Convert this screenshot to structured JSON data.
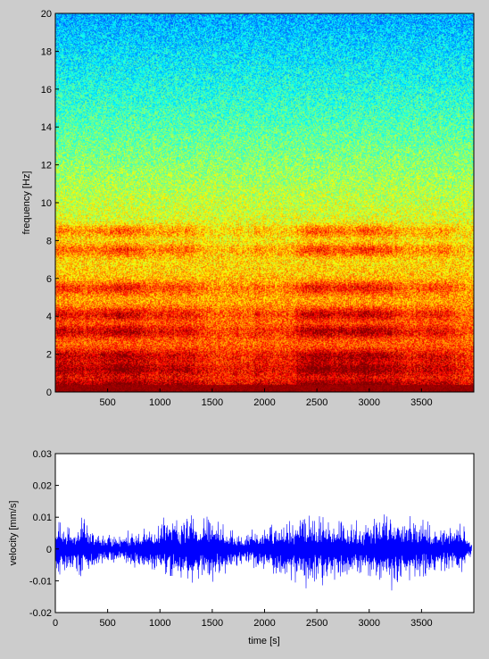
{
  "figure": {
    "background": "#cccccc"
  },
  "chart_data": [
    {
      "type": "heatmap",
      "title": "",
      "xlabel": "",
      "ylabel": "frequency [Hz]",
      "xlim": [
        0,
        4000
      ],
      "ylim": [
        0,
        20
      ],
      "x_ticks": [
        500,
        1000,
        1500,
        2000,
        2500,
        3000,
        3500
      ],
      "y_ticks": [
        0,
        2,
        4,
        6,
        8,
        10,
        12,
        14,
        16,
        18,
        20
      ],
      "colormap": "jet",
      "bands_hz": [
        {
          "freq": 0.3,
          "level": 0.95
        },
        {
          "freq": 1.2,
          "level": 0.85
        },
        {
          "freq": 1.9,
          "level": 0.75
        },
        {
          "freq": 3.2,
          "level": 0.9
        },
        {
          "freq": 4.1,
          "level": 0.85
        },
        {
          "freq": 5.5,
          "level": 0.75
        },
        {
          "freq": 7.5,
          "level": 0.8
        },
        {
          "freq": 8.5,
          "level": 0.75
        }
      ]
    },
    {
      "type": "line",
      "title": "",
      "xlabel": "time [s]",
      "ylabel": "velocity [mm/s]",
      "xlim": [
        0,
        4000
      ],
      "ylim": [
        -0.02,
        0.03
      ],
      "x_ticks": [
        0,
        500,
        1000,
        1500,
        2000,
        2500,
        3000,
        3500
      ],
      "y_ticks": [
        -0.02,
        -0.01,
        0,
        0.01,
        0.02,
        0.03
      ],
      "y_tick_labels": [
        "-0.02",
        "-0.01",
        "0",
        "0.01",
        "0.02",
        "0.03"
      ],
      "line_color": "#0000ff",
      "amplitude_envelope": {
        "t": [
          0,
          50,
          200,
          250,
          300,
          500,
          700,
          900,
          1100,
          1300,
          1500,
          1700,
          1800,
          2000,
          2200,
          2400,
          2600,
          2800,
          3000,
          3200,
          3300,
          3500,
          3700,
          3900,
          3980
        ],
        "amp": [
          0.013,
          0.009,
          0.007,
          0.015,
          0.008,
          0.005,
          0.006,
          0.008,
          0.011,
          0.012,
          0.012,
          0.007,
          0.005,
          0.009,
          0.01,
          0.013,
          0.012,
          0.009,
          0.01,
          0.013,
          0.015,
          0.01,
          0.009,
          0.008,
          0.002
        ]
      }
    }
  ]
}
